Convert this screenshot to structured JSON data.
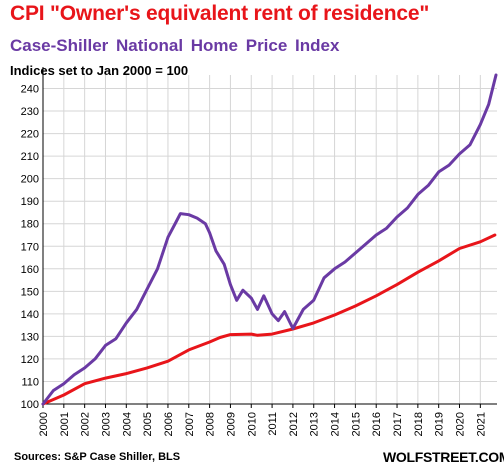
{
  "colors": {
    "cpi": "#e8151a",
    "cs": "#6a3aa4",
    "grid": "#d6d6d6",
    "axis": "#000000"
  },
  "chart_data": {
    "type": "line",
    "title": "CPI \"Owner's equivalent rent of residence\"",
    "subtitle": "Case-Shiller  National  Home Price  Index",
    "note": "Indices set to Jan 2000 = 100",
    "source": "Sources: S&P Case Shiller, BLS",
    "brand": "WOLFSTREET.COM",
    "ylim": [
      100,
      246
    ],
    "yticks": [
      100,
      110,
      120,
      130,
      140,
      150,
      160,
      170,
      180,
      190,
      200,
      210,
      220,
      230,
      240
    ],
    "xlim": [
      2000,
      2021.8
    ],
    "xticks": [
      "2000",
      "2001",
      "2002",
      "2003",
      "2004",
      "2005",
      "2006",
      "2007",
      "2008",
      "2009",
      "2010",
      "2011",
      "2012",
      "2013",
      "2014",
      "2015",
      "2016",
      "2017",
      "2018",
      "2019",
      "2020",
      "2021"
    ],
    "grid": true,
    "series": [
      {
        "key": "cpi",
        "title_ref": "title",
        "points": [
          [
            2000,
            100
          ],
          [
            2001,
            104
          ],
          [
            2002,
            109
          ],
          [
            2003,
            111.5
          ],
          [
            2004,
            113.5
          ],
          [
            2005,
            116
          ],
          [
            2006,
            119
          ],
          [
            2006.5,
            121.5
          ],
          [
            2007,
            124
          ],
          [
            2008,
            127.5
          ],
          [
            2008.5,
            129.5
          ],
          [
            2009,
            130.8
          ],
          [
            2010,
            131
          ],
          [
            2010.3,
            130.5
          ],
          [
            2011,
            131
          ],
          [
            2012,
            133.3
          ],
          [
            2013,
            136
          ],
          [
            2014,
            139.5
          ],
          [
            2015,
            143.5
          ],
          [
            2016,
            148
          ],
          [
            2017,
            153
          ],
          [
            2018,
            158.5
          ],
          [
            2019,
            163.5
          ],
          [
            2020,
            169
          ],
          [
            2021,
            172
          ],
          [
            2021.7,
            175
          ]
        ]
      },
      {
        "key": "cs",
        "title_ref": "subtitle",
        "points": [
          [
            2000,
            100
          ],
          [
            2000.5,
            106
          ],
          [
            2001,
            109
          ],
          [
            2001.5,
            113
          ],
          [
            2002,
            116
          ],
          [
            2002.5,
            120
          ],
          [
            2003,
            126
          ],
          [
            2003.5,
            129
          ],
          [
            2004,
            136
          ],
          [
            2004.5,
            142
          ],
          [
            2005,
            151
          ],
          [
            2005.5,
            160
          ],
          [
            2006,
            174
          ],
          [
            2006.4,
            181
          ],
          [
            2006.6,
            184.5
          ],
          [
            2007,
            184
          ],
          [
            2007.4,
            182.5
          ],
          [
            2007.8,
            180
          ],
          [
            2008,
            176
          ],
          [
            2008.3,
            168
          ],
          [
            2008.7,
            162
          ],
          [
            2009,
            153
          ],
          [
            2009.3,
            146
          ],
          [
            2009.6,
            150.5
          ],
          [
            2010,
            147
          ],
          [
            2010.3,
            142
          ],
          [
            2010.6,
            148
          ],
          [
            2011,
            140
          ],
          [
            2011.3,
            137
          ],
          [
            2011.6,
            141
          ],
          [
            2012,
            133.5
          ],
          [
            2012.5,
            142
          ],
          [
            2013,
            146
          ],
          [
            2013.5,
            156
          ],
          [
            2014,
            160
          ],
          [
            2014.5,
            163
          ],
          [
            2015,
            167
          ],
          [
            2015.5,
            171
          ],
          [
            2016,
            175
          ],
          [
            2016.5,
            178
          ],
          [
            2017,
            183
          ],
          [
            2017.5,
            187
          ],
          [
            2018,
            193
          ],
          [
            2018.5,
            197
          ],
          [
            2019,
            203
          ],
          [
            2019.5,
            206
          ],
          [
            2020,
            211
          ],
          [
            2020.5,
            215
          ],
          [
            2021,
            224
          ],
          [
            2021.4,
            233
          ],
          [
            2021.75,
            246
          ]
        ]
      }
    ]
  }
}
